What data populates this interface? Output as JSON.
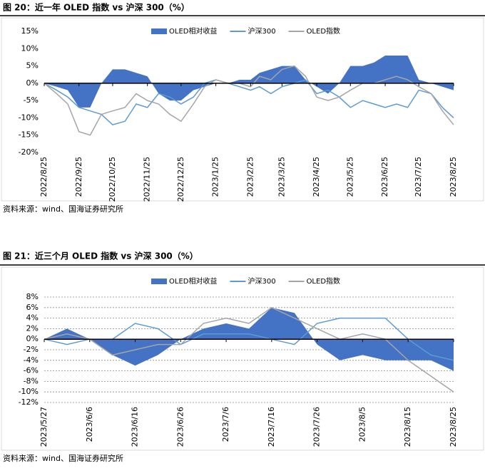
{
  "chart_data": [
    {
      "type": "line",
      "title": "图 20：近一年 OLED 指数 vs 沪深 300（%）",
      "source": "资料来源：wind、国海证券研究所",
      "x": [
        "2022/8/25",
        "2022/9/5",
        "2022/9/15",
        "2022/9/25",
        "2022/10/5",
        "2022/10/15",
        "2022/10/25",
        "2022/11/5",
        "2022/11/15",
        "2022/11/25",
        "2022/12/5",
        "2022/12/15",
        "2022/12/25",
        "2023/1/5",
        "2023/1/15",
        "2023/1/25",
        "2023/2/5",
        "2023/2/15",
        "2023/2/25",
        "2023/3/5",
        "2023/3/15",
        "2023/3/25",
        "2023/4/5",
        "2023/4/15",
        "2023/4/25",
        "2023/5/5",
        "2023/5/15",
        "2023/5/25",
        "2023/6/5",
        "2023/6/15",
        "2023/6/25",
        "2023/7/5",
        "2023/7/15",
        "2023/7/25",
        "2023/8/5",
        "2023/8/15",
        "2023/8/25"
      ],
      "series": [
        {
          "name": "OLED相对收益",
          "color": "#4472c4",
          "style": "area",
          "values": [
            0,
            -1,
            -2,
            -7,
            -7,
            0,
            4,
            4,
            3,
            2,
            -3,
            -5,
            -5,
            -2,
            -1,
            0,
            0,
            1,
            1,
            3,
            4,
            5,
            5,
            1,
            -1,
            -3,
            0,
            5,
            5,
            6,
            8,
            8,
            8,
            1,
            0,
            -1,
            -2
          ]
        },
        {
          "name": "沪深300",
          "color": "#5b9bd5",
          "style": "line",
          "values": [
            0,
            -2,
            -4,
            -7,
            -8,
            -9,
            -12,
            -11,
            -6,
            -7,
            -3,
            -4,
            -6,
            -4,
            0,
            1,
            0,
            -1,
            -2,
            -1,
            -3,
            -1,
            0,
            1,
            -3,
            -2,
            -4,
            -7,
            -5,
            -6,
            -7,
            -6,
            -7,
            -2,
            -3,
            -7,
            -10
          ]
        },
        {
          "name": "OLED指数",
          "color": "#a5a5a5",
          "style": "line",
          "values": [
            0,
            -3,
            -6,
            -14,
            -15,
            -9,
            -8,
            -7,
            -3,
            -5,
            -6,
            -9,
            -11,
            -6,
            -1,
            1,
            0,
            0,
            -1,
            2,
            1,
            4,
            5,
            2,
            -4,
            -5,
            -4,
            -2,
            0,
            0,
            1,
            2,
            1,
            -1,
            -3,
            -8,
            -12
          ]
        }
      ],
      "xlim": [
        "2022/8/25",
        "2023/8/25"
      ],
      "xticks": [
        "2022/8/25",
        "2022/9/25",
        "2022/10/25",
        "2022/11/25",
        "2022/12/25",
        "2023/1/25",
        "2023/2/25",
        "2023/3/25",
        "2023/4/25",
        "2023/5/25",
        "2023/6/25",
        "2023/7/25",
        "2023/8/25"
      ],
      "ylim": [
        -20,
        15
      ],
      "yticks": [
        {
          "value": -20,
          "label": "-20%"
        },
        {
          "value": -15,
          "label": "-15%"
        },
        {
          "value": -10,
          "label": "-10%"
        },
        {
          "value": -5,
          "label": "-5%"
        },
        {
          "value": 0,
          "label": "0%"
        },
        {
          "value": 5,
          "label": "5%"
        },
        {
          "value": 10,
          "label": "10%"
        },
        {
          "value": 15,
          "label": "15%"
        }
      ],
      "grid": false
    },
    {
      "type": "line",
      "title": "图 21：近三个月 OLED 指数 vs 沪深 300（%）",
      "source": "资料来源：wind、国海证券研究所",
      "x": [
        "2023/5/27",
        "2023/6/1",
        "2023/6/6",
        "2023/6/11",
        "2023/6/16",
        "2023/6/21",
        "2023/6/26",
        "2023/7/1",
        "2023/7/6",
        "2023/7/11",
        "2023/7/16",
        "2023/7/21",
        "2023/7/26",
        "2023/7/31",
        "2023/8/5",
        "2023/8/10",
        "2023/8/15",
        "2023/8/20",
        "2023/8/25"
      ],
      "series": [
        {
          "name": "OLED相对收益",
          "color": "#4472c4",
          "style": "area",
          "values": [
            0,
            2,
            0,
            -3,
            -5,
            -3,
            0,
            2,
            3,
            2,
            6,
            5,
            -1,
            -4,
            -3,
            -4,
            -4,
            -4,
            -6
          ]
        },
        {
          "name": "沪深300",
          "color": "#5b9bd5",
          "style": "line",
          "values": [
            0,
            -1,
            0,
            0,
            3,
            2,
            -1,
            1,
            1,
            1,
            0,
            -1,
            3,
            4,
            4,
            4,
            0,
            -3,
            -4
          ]
        },
        {
          "name": "OLED指数",
          "color": "#a5a5a5",
          "style": "line",
          "values": [
            0,
            1,
            0,
            -3,
            -2,
            -1,
            -1,
            3,
            4,
            3,
            6,
            4,
            2,
            0,
            1,
            0,
            -4,
            -7,
            -10
          ]
        }
      ],
      "xlim": [
        "2023/5/27",
        "2023/8/25"
      ],
      "xticks": [
        "2023/5/27",
        "2023/6/6",
        "2023/6/16",
        "2023/6/26",
        "2023/7/6",
        "2023/7/16",
        "2023/7/26",
        "2023/8/5",
        "2023/8/15",
        "2023/8/25"
      ],
      "ylim": [
        -12,
        8
      ],
      "yticks": [
        {
          "value": -12,
          "label": "-12%"
        },
        {
          "value": -10,
          "label": "-10%"
        },
        {
          "value": -8,
          "label": "-8%"
        },
        {
          "value": -6,
          "label": "-6%"
        },
        {
          "value": -4,
          "label": "-4%"
        },
        {
          "value": -2,
          "label": "-2%"
        },
        {
          "value": 0,
          "label": "0%"
        },
        {
          "value": 2,
          "label": "2%"
        },
        {
          "value": 4,
          "label": "4%"
        },
        {
          "value": 6,
          "label": "6%"
        },
        {
          "value": 8,
          "label": "8%"
        }
      ],
      "grid": true
    }
  ]
}
